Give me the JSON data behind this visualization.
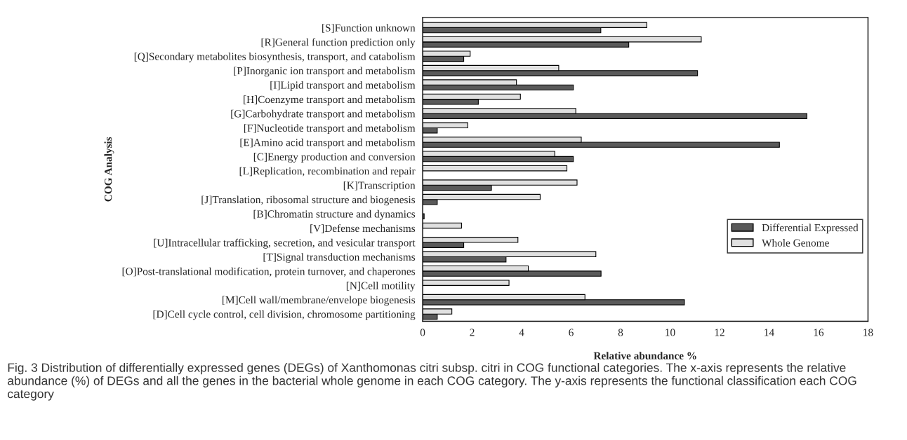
{
  "chart_data": {
    "type": "bar",
    "orientation": "horizontal",
    "xlabel": "Relative abundance %",
    "ylabel": "COG Analysis",
    "categories": [
      "[S]Function unknown",
      "[R]General function prediction only",
      "[Q]Secondary metabolites biosynthesis, transport, and catabolism",
      "[P]Inorganic ion transport and metabolism",
      "[I]Lipid transport and metabolism",
      "[H]Coenzyme transport and metabolism",
      "[G]Carbohydrate transport and metabolism",
      "[F]Nucleotide transport and metabolism",
      "[E]Amino acid transport and metabolism",
      "[C]Energy production and conversion",
      "[L]Replication, recombination and repair",
      "[K]Transcription",
      "[J]Translation, ribosomal structure and biogenesis",
      "[B]Chromatin structure and dynamics",
      "[V]Defense mechanisms",
      "[U]Intracellular trafficking, secretion, and vesicular transport",
      "[T]Signal transduction mechanisms",
      "[O]Post-translational modification, protein turnover, and chaperones",
      "[N]Cell motility",
      "[M]Cell wall/membrane/envelope biogenesis",
      "[D]Cell cycle control, cell division, chromosome partitioning"
    ],
    "series": [
      {
        "name": "Differential Expressed",
        "color": "#5a5a5a",
        "values": [
          7.2,
          8.33,
          1.66,
          11.11,
          6.09,
          2.25,
          15.53,
          0.59,
          14.42,
          6.09,
          null,
          2.78,
          0.59,
          0.06,
          null,
          1.66,
          3.37,
          7.21,
          null,
          10.58,
          0.59
        ]
      },
      {
        "name": "Whole Genome",
        "color": "#e0e0e0",
        "values": [
          9.06,
          11.26,
          1.92,
          5.5,
          3.79,
          3.95,
          6.19,
          1.82,
          6.41,
          5.34,
          5.83,
          6.24,
          4.75,
          null,
          1.57,
          3.85,
          7.0,
          4.27,
          3.49,
          6.56,
          1.18
        ]
      }
    ],
    "xlim": [
      0,
      18
    ],
    "xticks": [
      0,
      2,
      4,
      6,
      8,
      10,
      12,
      14,
      16,
      18
    ],
    "legend": "right",
    "grid": false,
    "annotations": [
      "Fig. 3 Distribution of differentially expressed genes (DEGs) of Xanthomonas citri subsp. citri in COG functional categories. The x-axis represents the relative abundance (%) of DEGs and all the genes in the bacterial whole genome in each COG category. The y-axis represents the functional classification each COG category"
    ]
  }
}
